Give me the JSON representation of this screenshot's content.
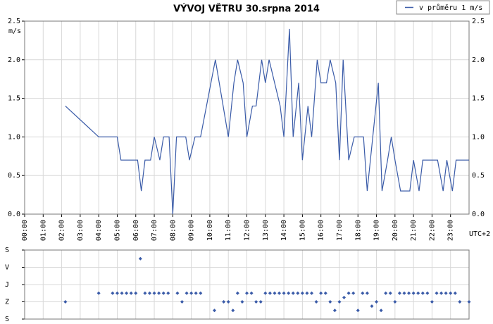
{
  "chart_data": [
    {
      "type": "line",
      "title": "VÝVOJ VĚTRU  30.srpna 2014",
      "y_label": "m/s",
      "x_label": "UTC+2",
      "xlim": [
        0,
        24
      ],
      "xticks": [
        {
          "value": 0,
          "label": "00:00"
        },
        {
          "value": 1,
          "label": "01:00"
        },
        {
          "value": 2,
          "label": "02:00"
        },
        {
          "value": 3,
          "label": "03:00"
        },
        {
          "value": 4,
          "label": "04:00"
        },
        {
          "value": 5,
          "label": "05:00"
        },
        {
          "value": 6,
          "label": "06:00"
        },
        {
          "value": 7,
          "label": "07:00"
        },
        {
          "value": 8,
          "label": "08:00"
        },
        {
          "value": 9,
          "label": "09:00"
        },
        {
          "value": 10,
          "label": "10:00"
        },
        {
          "value": 11,
          "label": "11:00"
        },
        {
          "value": 12,
          "label": "12:00"
        },
        {
          "value": 13,
          "label": "13:00"
        },
        {
          "value": 14,
          "label": "14:00"
        },
        {
          "value": 15,
          "label": "15:00"
        },
        {
          "value": 16,
          "label": "16:00"
        },
        {
          "value": 17,
          "label": "17:00"
        },
        {
          "value": 18,
          "label": "18:00"
        },
        {
          "value": 19,
          "label": "19:00"
        },
        {
          "value": 20,
          "label": "20:00"
        },
        {
          "value": 21,
          "label": "21:00"
        },
        {
          "value": 22,
          "label": "22:00"
        },
        {
          "value": 23,
          "label": "23:00"
        }
      ],
      "ylim": [
        0,
        2.5
      ],
      "yticks": [
        {
          "value": 0,
          "label": "0.0"
        },
        {
          "value": 0.5,
          "label": "0.5"
        },
        {
          "value": 1,
          "label": "1.0"
        },
        {
          "value": 1.5,
          "label": "1.5"
        },
        {
          "value": 2,
          "label": "2.0"
        },
        {
          "value": 2.5,
          "label": "2.5"
        }
      ],
      "grid": true,
      "legend": "top-right",
      "x": [
        2.2,
        4.0,
        5.0,
        5.2,
        6.1,
        6.3,
        6.5,
        6.8,
        7.0,
        7.3,
        7.5,
        7.8,
        8.0,
        8.2,
        8.7,
        8.9,
        9.2,
        9.5,
        10.3,
        11.0,
        11.3,
        11.5,
        11.8,
        12.0,
        12.3,
        12.5,
        12.8,
        13.0,
        13.2,
        13.8,
        14.0,
        14.3,
        14.5,
        14.8,
        15.0,
        15.3,
        15.5,
        15.8,
        16.0,
        16.3,
        16.5,
        16.8,
        17.0,
        17.2,
        17.5,
        17.8,
        18.3,
        18.5,
        18.8,
        19.1,
        19.3,
        19.6,
        19.8,
        20.0,
        20.3,
        20.8,
        21.0,
        21.3,
        21.5,
        22.3,
        22.6,
        22.8,
        23.1,
        23.3,
        24.0
      ],
      "series": [
        {
          "name": "v průměru 1 m/s",
          "color": "#3a5ba8",
          "values": [
            1.4,
            1.0,
            1.0,
            0.7,
            0.7,
            0.3,
            0.7,
            0.7,
            1.0,
            0.7,
            1.0,
            1.0,
            0.0,
            1.0,
            1.0,
            0.7,
            1.0,
            1.0,
            2.0,
            1.0,
            1.7,
            2.0,
            1.7,
            1.0,
            1.4,
            1.4,
            2.0,
            1.7,
            2.0,
            1.4,
            1.0,
            2.4,
            1.0,
            1.7,
            0.7,
            1.4,
            1.0,
            2.0,
            1.7,
            1.7,
            2.0,
            1.7,
            0.7,
            2.0,
            0.7,
            1.0,
            1.0,
            0.3,
            1.0,
            1.7,
            0.3,
            0.7,
            1.0,
            0.7,
            0.3,
            0.3,
            0.7,
            0.3,
            0.7,
            0.7,
            0.3,
            0.7,
            0.3,
            0.7,
            0.7
          ]
        }
      ]
    },
    {
      "type": "scatter",
      "xlim": [
        0,
        24
      ],
      "ylim": [
        0,
        4
      ],
      "yticks": [
        {
          "value": 0,
          "label": "S"
        },
        {
          "value": 1,
          "label": "Z"
        },
        {
          "value": 2,
          "label": "J"
        },
        {
          "value": 3,
          "label": "V"
        },
        {
          "value": 4,
          "label": "S"
        }
      ],
      "grid": true,
      "x": [
        2.2,
        4.0,
        4.75,
        5.0,
        5.25,
        5.5,
        5.75,
        6.0,
        6.25,
        6.5,
        6.75,
        7.0,
        7.25,
        7.5,
        7.75,
        8.25,
        8.5,
        8.75,
        9.0,
        9.25,
        9.5,
        10.25,
        10.75,
        11.0,
        11.25,
        11.5,
        11.75,
        12.0,
        12.25,
        12.5,
        12.75,
        13.0,
        13.25,
        13.5,
        13.75,
        14.0,
        14.25,
        14.5,
        14.75,
        15.0,
        15.25,
        15.5,
        15.75,
        16.0,
        16.25,
        16.5,
        16.75,
        17.0,
        17.25,
        17.5,
        17.75,
        18.0,
        18.25,
        18.5,
        18.75,
        19.0,
        19.25,
        19.5,
        19.75,
        20.0,
        20.25,
        20.5,
        20.75,
        21.0,
        21.25,
        21.5,
        21.75,
        22.0,
        22.25,
        22.5,
        22.75,
        23.0,
        23.25,
        23.5,
        24.0
      ],
      "series": [
        {
          "color": "#3a5ba8",
          "values": [
            1,
            1.5,
            1.5,
            1.5,
            1.5,
            1.5,
            1.5,
            1.5,
            3.5,
            1.5,
            1.5,
            1.5,
            1.5,
            1.5,
            1.5,
            1.5,
            1,
            1.5,
            1.5,
            1.5,
            1.5,
            0.5,
            1,
            1,
            0.5,
            1.5,
            1,
            1.5,
            1.5,
            1,
            1,
            1.5,
            1.5,
            1.5,
            1.5,
            1.5,
            1.5,
            1.5,
            1.5,
            1.5,
            1.5,
            1.5,
            1,
            1.5,
            1.5,
            1,
            0.5,
            1,
            1.25,
            1.5,
            1.5,
            0.5,
            1.5,
            1.5,
            0.75,
            1,
            0.5,
            1.5,
            1.5,
            1,
            1.5,
            1.5,
            1.5,
            1.5,
            1.5,
            1.5,
            1.5,
            1,
            1.5,
            1.5,
            1.5,
            1.5,
            1.5,
            1,
            1
          ]
        }
      ]
    }
  ]
}
